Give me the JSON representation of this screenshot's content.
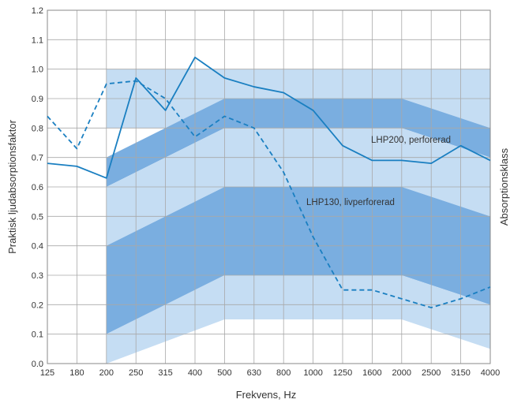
{
  "chart_data": {
    "type": "line",
    "xlabel": "Frekvens, Hz",
    "ylabel": "Praktisk ljudabsorptionsfaktor",
    "ylabel_right": "Absorptionsklass",
    "x": [
      "125",
      "180",
      "200",
      "250",
      "315",
      "400",
      "500",
      "630",
      "800",
      "1000",
      "1250",
      "1600",
      "2000",
      "2500",
      "3150",
      "4000"
    ],
    "ylim": [
      0,
      1.2
    ],
    "yticks": [
      "0.0",
      "0.1",
      "0.2",
      "0.3",
      "0.4",
      "0.5",
      "0.6",
      "0.7",
      "0.8",
      "0.9",
      "1.0",
      "1.1",
      "1.2"
    ],
    "grid": true,
    "series": [
      {
        "name": "LHP200, perforerad",
        "style": "solid",
        "color": "#1a7fc1",
        "values": [
          0.68,
          0.67,
          0.63,
          0.97,
          0.86,
          1.04,
          0.97,
          0.94,
          0.92,
          0.86,
          0.74,
          0.69,
          0.69,
          0.68,
          0.74,
          0.69
        ]
      },
      {
        "name": "LHP130, livperforerad",
        "style": "dashed",
        "color": "#1a7fc1",
        "values": [
          0.84,
          0.73,
          0.95,
          0.96,
          0.9,
          0.77,
          0.84,
          0.8,
          0.65,
          0.43,
          0.25,
          0.25,
          0.22,
          0.19,
          0.22,
          0.26
        ]
      }
    ],
    "absorption_class_bands": [
      {
        "shade": "light",
        "color": "#c5ddf3",
        "upper": [
          [
            200,
            1.0
          ],
          [
            4000,
            1.0
          ]
        ],
        "lower": [
          [
            200,
            0.8
          ],
          [
            4000,
            0.8
          ]
        ]
      },
      {
        "shade": "dark",
        "color": "#7aaee0",
        "upper": [
          [
            200,
            0.7
          ],
          [
            500,
            0.9
          ],
          [
            2000,
            0.9
          ],
          [
            4000,
            0.8
          ]
        ],
        "lower": [
          [
            200,
            0.6
          ],
          [
            500,
            0.8
          ],
          [
            2000,
            0.8
          ],
          [
            4000,
            0.7
          ]
        ]
      },
      {
        "shade": "light",
        "color": "#c5ddf3",
        "upper": [
          [
            200,
            0.6
          ],
          [
            500,
            0.8
          ],
          [
            2000,
            0.8
          ],
          [
            4000,
            0.7
          ]
        ],
        "lower": [
          [
            200,
            0.4
          ],
          [
            500,
            0.6
          ],
          [
            2000,
            0.6
          ],
          [
            4000,
            0.5
          ]
        ]
      },
      {
        "shade": "dark",
        "color": "#7aaee0",
        "upper": [
          [
            200,
            0.4
          ],
          [
            500,
            0.6
          ],
          [
            2000,
            0.6
          ],
          [
            4000,
            0.5
          ]
        ],
        "lower": [
          [
            200,
            0.1
          ],
          [
            500,
            0.3
          ],
          [
            2000,
            0.3
          ],
          [
            4000,
            0.2
          ]
        ]
      },
      {
        "shade": "light",
        "color": "#c5ddf3",
        "upper": [
          [
            200,
            0.1
          ],
          [
            500,
            0.3
          ],
          [
            2000,
            0.3
          ],
          [
            4000,
            0.2
          ]
        ],
        "lower": [
          [
            200,
            0.0
          ],
          [
            500,
            0.15
          ],
          [
            2000,
            0.15
          ],
          [
            4000,
            0.05
          ]
        ]
      }
    ]
  }
}
